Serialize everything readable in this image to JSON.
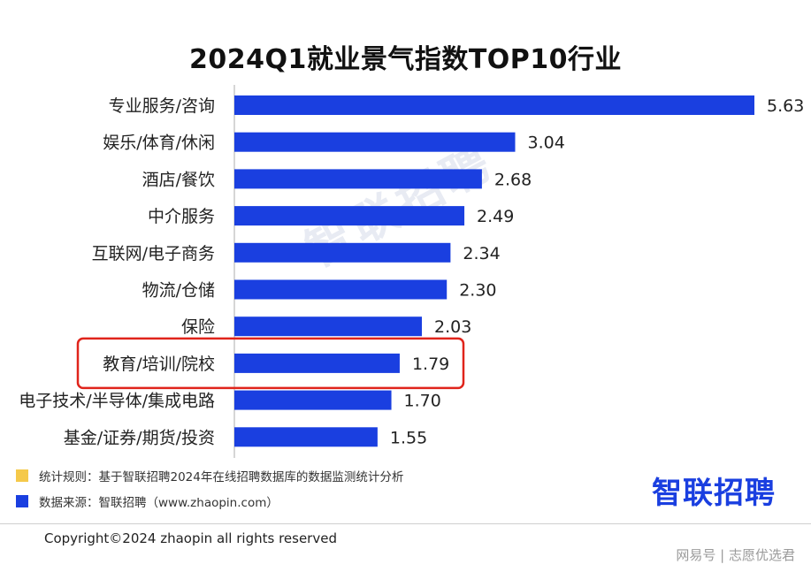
{
  "chart_data": {
    "type": "bar",
    "orientation": "horizontal",
    "title": "2024Q1就业景气指数TOP10行业",
    "categories": [
      "专业服务/咨询",
      "娱乐/体育/休闲",
      "酒店/餐饮",
      "中介服务",
      "互联网/电子商务",
      "物流/仓储",
      "保险",
      "教育/培训/院校",
      "电子技术/半导体/集成电路",
      "基金/证券/期货/投资"
    ],
    "values": [
      5.63,
      3.04,
      2.68,
      2.49,
      2.34,
      2.3,
      2.03,
      1.79,
      1.7,
      1.55
    ],
    "value_labels": [
      "5.63",
      "3.04",
      "2.68",
      "2.49",
      "2.34",
      "2.30",
      "2.03",
      "1.79",
      "1.70",
      "1.55"
    ],
    "highlighted_category": "教育/培训/院校",
    "xlim": [
      0,
      6
    ],
    "xlabel": "",
    "ylabel": "",
    "grid": false
  },
  "colors": {
    "bar": "#1a3fe0",
    "axis": "#c8c8c8",
    "highlight_box": "#e0241b",
    "legend_rule": "#f5c94a",
    "legend_source": "#1a3fe0",
    "logo": "#1a3fe0"
  },
  "watermark": "智联招聘",
  "legend": {
    "rule": "统计规则：基于智联招聘2024年在线招聘数据库的数据监测统计分析",
    "source": "数据来源：智联招聘（www.zhaopin.com）"
  },
  "logo_text": "智联招聘",
  "copyright": "Copyright©2024 zhaopin all rights reserved",
  "source_mark": "网易号 | 志愿优选君"
}
